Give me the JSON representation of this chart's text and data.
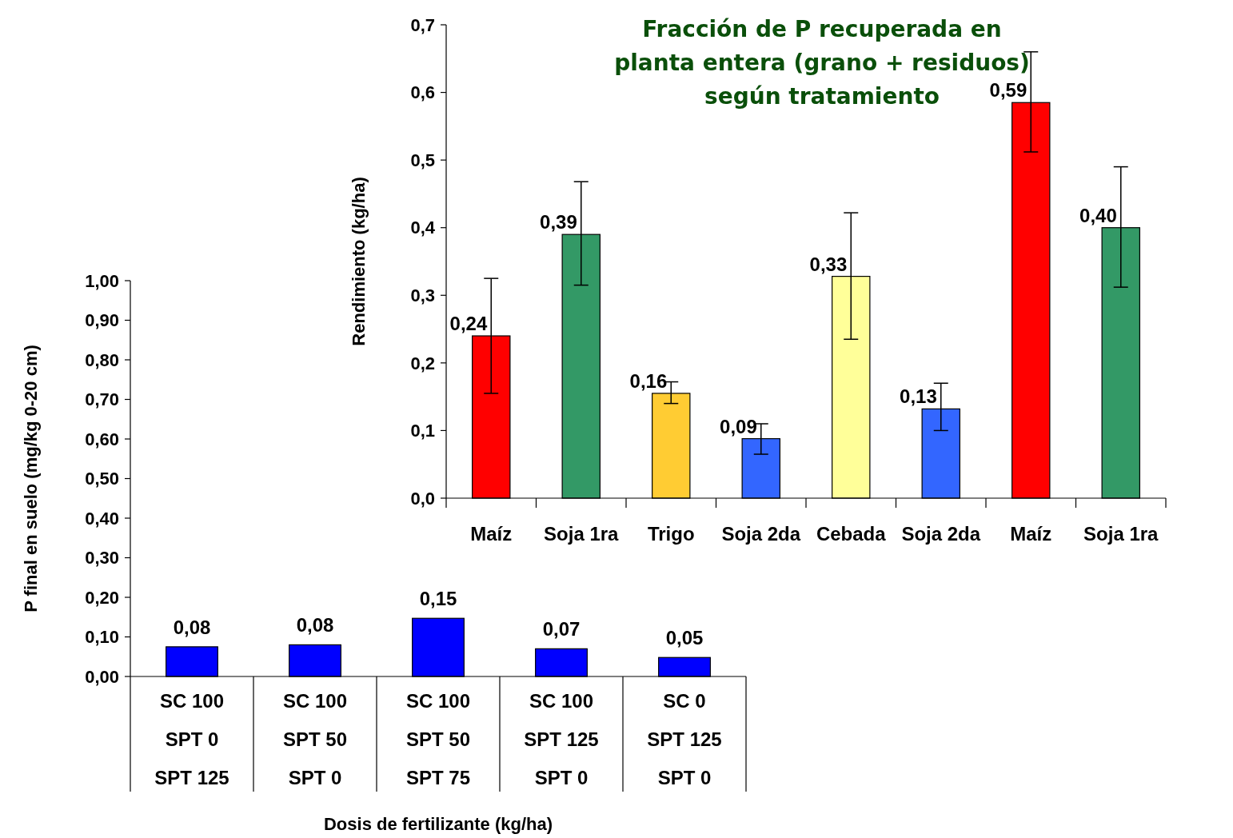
{
  "chart_data": [
    {
      "type": "bar",
      "title": "Fracción de P recuperada en\nplanta entera (grano + residuos)\nsegún tratamiento",
      "ylabel": "Rendimiento (kg/ha)",
      "categories": [
        "Maíz",
        "Soja 1ra",
        "Trigo",
        "Soja 2da",
        "Cebada",
        "Soja 2da",
        "Maíz",
        "Soja 1ra"
      ],
      "values": [
        0.24,
        0.39,
        0.155,
        0.088,
        0.328,
        0.132,
        0.585,
        0.4
      ],
      "colors": [
        "#ff0000",
        "#339966",
        "#ffcc33",
        "#3366ff",
        "#ffff99",
        "#3366ff",
        "#ff0000",
        "#339966"
      ],
      "errors": [
        [
          0.155,
          0.325
        ],
        [
          0.315,
          0.468
        ],
        [
          0.14,
          0.172
        ],
        [
          0.065,
          0.11
        ],
        [
          0.235,
          0.422
        ],
        [
          0.1,
          0.17
        ],
        [
          0.512,
          0.66
        ],
        [
          0.312,
          0.49
        ]
      ],
      "value_labels": [
        "0,24",
        "0,39",
        "0,16",
        "0,09",
        "0,33",
        "0,13",
        "0,59",
        "0,40"
      ],
      "ylim": [
        0,
        0.7
      ],
      "yticks": [
        {
          "value": 0,
          "label": "0,0"
        },
        {
          "value": 0.1,
          "label": "0,1"
        },
        {
          "value": 0.2,
          "label": "0,2"
        },
        {
          "value": 0.3,
          "label": "0,3"
        },
        {
          "value": 0.4,
          "label": "0,4"
        },
        {
          "value": 0.5,
          "label": "0,5"
        },
        {
          "value": 0.6,
          "label": "0,6"
        },
        {
          "value": 0.7,
          "label": "0,7"
        }
      ],
      "grid": false
    },
    {
      "type": "bar",
      "xlabel": "Dosis de fertilizante (kg/ha)",
      "ylabel": "P final en suelo (mg/kg 0-20 cm)",
      "categories": [
        "SC 100\nSPT 0\nSPT 125",
        "SC 100\nSPT 50\nSPT 0",
        "SC 100\nSPT 50\nSPT 75",
        "SC 100\nSPT 125\nSPT 0",
        "SC 0\nSPT 125\nSPT 0"
      ],
      "values": [
        0.075,
        0.08,
        0.147,
        0.07,
        0.048
      ],
      "color": "#0000ff",
      "value_labels": [
        "0,08",
        "0,08",
        "0,15",
        "0,07",
        "0,05"
      ],
      "ylim": [
        0,
        1
      ],
      "yticks": [
        {
          "value": 0,
          "label": "0,00"
        },
        {
          "value": 0.1,
          "label": "0,10"
        },
        {
          "value": 0.2,
          "label": "0,20"
        },
        {
          "value": 0.3,
          "label": "0,30"
        },
        {
          "value": 0.4,
          "label": "0,40"
        },
        {
          "value": 0.5,
          "label": "0,50"
        },
        {
          "value": 0.6,
          "label": "0,60"
        },
        {
          "value": 0.7,
          "label": "0,70"
        },
        {
          "value": 0.8,
          "label": "0,80"
        },
        {
          "value": 0.9,
          "label": "0,90"
        },
        {
          "value": 1,
          "label": "1,00"
        }
      ],
      "grid": false
    }
  ]
}
